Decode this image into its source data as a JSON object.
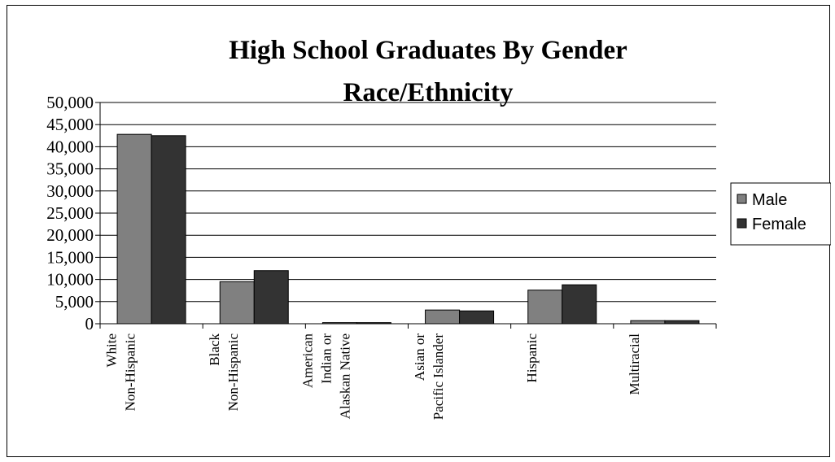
{
  "chart_data": {
    "type": "bar",
    "title": "High School Graduates By Gender",
    "subtitle": "Race/Ethnicity",
    "xlabel": "",
    "ylabel": "",
    "ylim": [
      0,
      50000
    ],
    "yticks": [
      0,
      5000,
      10000,
      15000,
      20000,
      25000,
      30000,
      35000,
      40000,
      45000,
      50000
    ],
    "ytick_labels": [
      "0",
      "5,000",
      "10,000",
      "15,000",
      "20,000",
      "25,000",
      "30,000",
      "35,000",
      "40,000",
      "45,000",
      "50,000"
    ],
    "grid": true,
    "legend_position": "right",
    "categories": [
      [
        "White",
        "Non-Hispanic"
      ],
      [
        "Black",
        "Non-Hispanic"
      ],
      [
        "American",
        "Indian or",
        "Alaskan Native"
      ],
      [
        "Asian or",
        "Pacific Islander"
      ],
      [
        "Hispanic"
      ],
      [
        "Multiracial"
      ]
    ],
    "series": [
      {
        "name": "Male",
        "color": "#808080",
        "values": [
          42800,
          9500,
          250,
          3100,
          7600,
          700
        ]
      },
      {
        "name": "Female",
        "color": "#333333",
        "values": [
          42500,
          12000,
          250,
          2900,
          8800,
          700
        ]
      }
    ]
  }
}
